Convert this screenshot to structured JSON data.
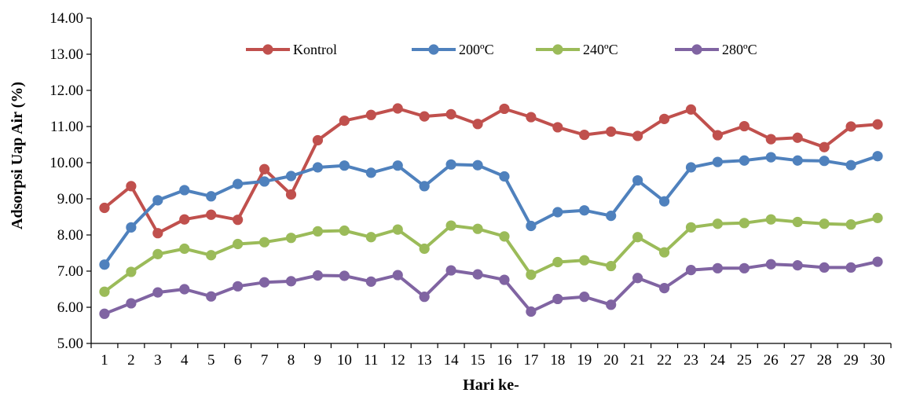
{
  "chart_data": {
    "type": "line",
    "title": "",
    "xlabel": "Hari ke-",
    "ylabel": "Adsorpsi Uap Air (%)",
    "ylim": [
      5,
      14
    ],
    "y_ticks": [
      "5.00",
      "6.00",
      "7.00",
      "8.00",
      "9.00",
      "10.00",
      "11.00",
      "12.00",
      "13.00",
      "14.00"
    ],
    "x": [
      1,
      2,
      3,
      4,
      5,
      6,
      7,
      8,
      9,
      10,
      11,
      12,
      13,
      14,
      15,
      16,
      17,
      18,
      19,
      20,
      21,
      22,
      23,
      24,
      25,
      26,
      27,
      28,
      29,
      30
    ],
    "grid": false,
    "legend_position": "top",
    "series": [
      {
        "name": "Kontrol",
        "color": "#c0504d",
        "values": [
          8.75,
          9.35,
          8.05,
          8.43,
          8.56,
          8.42,
          9.82,
          9.12,
          10.62,
          11.16,
          11.32,
          11.5,
          11.28,
          11.34,
          11.07,
          11.49,
          11.26,
          10.98,
          10.77,
          10.86,
          10.74,
          11.21,
          11.47,
          10.76,
          11.01,
          10.65,
          10.69,
          10.43,
          11.0,
          11.06
        ]
      },
      {
        "name": "200ºC",
        "color": "#4f81bd",
        "values": [
          7.18,
          8.21,
          8.96,
          9.24,
          9.07,
          9.41,
          9.48,
          9.63,
          9.87,
          9.92,
          9.72,
          9.92,
          9.35,
          9.95,
          9.93,
          9.62,
          8.25,
          8.63,
          8.68,
          8.53,
          9.51,
          8.93,
          9.87,
          10.02,
          10.06,
          10.15,
          10.06,
          10.05,
          9.93,
          10.18
        ]
      },
      {
        "name": "240ºC",
        "color": "#9bbb59",
        "values": [
          6.43,
          6.98,
          7.47,
          7.62,
          7.44,
          7.75,
          7.8,
          7.92,
          8.1,
          8.12,
          7.94,
          8.15,
          7.62,
          8.26,
          8.17,
          7.96,
          6.9,
          7.25,
          7.3,
          7.14,
          7.94,
          7.52,
          8.21,
          8.31,
          8.33,
          8.43,
          8.36,
          8.31,
          8.29,
          8.47
        ]
      },
      {
        "name": "280ºC",
        "color": "#8064a2",
        "values": [
          5.82,
          6.11,
          6.41,
          6.5,
          6.3,
          6.58,
          6.69,
          6.72,
          6.88,
          6.87,
          6.71,
          6.89,
          6.29,
          7.02,
          6.91,
          6.76,
          5.88,
          6.23,
          6.29,
          6.07,
          6.81,
          6.53,
          7.03,
          7.08,
          7.08,
          7.19,
          7.16,
          7.1,
          7.1,
          7.26
        ]
      }
    ]
  }
}
